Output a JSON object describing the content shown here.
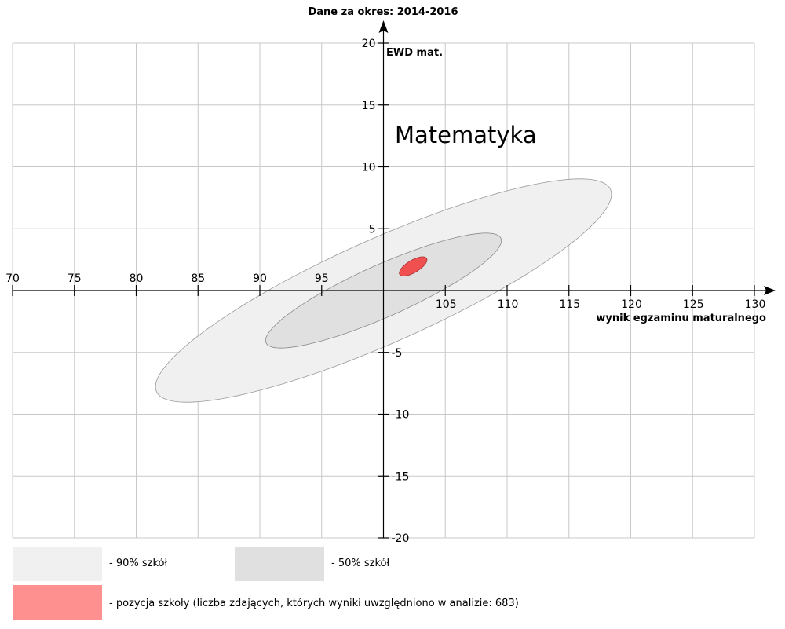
{
  "header": {
    "title": "Dane za okres: 2014-2016"
  },
  "chart_data": {
    "type": "scatter",
    "subtitle": "Matematyka",
    "xlabel": "wynik egzaminu maturalnego",
    "ylabel": "EWD mat.",
    "xlim": [
      70,
      130
    ],
    "ylim": [
      -20,
      20
    ],
    "x_ticks": [
      70,
      75,
      80,
      85,
      90,
      95,
      105,
      110,
      115,
      120,
      125,
      130
    ],
    "y_ticks": [
      20,
      15,
      10,
      5,
      -5,
      -10,
      -15,
      -20
    ],
    "grid": true,
    "regions": [
      {
        "name": "90% szkół",
        "shape": "ellipse",
        "color": "#f0f0f0",
        "stroke": "#999999",
        "center": [
          100,
          0
        ],
        "axes": [
          20.1,
          4.2
        ],
        "angle_deg": 24
      },
      {
        "name": "50% szkół",
        "shape": "ellipse",
        "color": "#e0e0e0",
        "stroke": "#8a8a8a",
        "center": [
          100,
          0
        ],
        "axes": [
          10.4,
          2.1
        ],
        "angle_deg": 24
      },
      {
        "name": "pozycja szkoły",
        "shape": "ellipse",
        "color": "#f05050",
        "stroke": "#a03030",
        "center": [
          102.4,
          1.95
        ],
        "axes": [
          1.27,
          0.5
        ],
        "angle_deg": 31
      }
    ]
  },
  "legend": {
    "items": [
      {
        "label": "- 90% szkół",
        "color": "#f0f0f0"
      },
      {
        "label": "- 50% szkół",
        "color": "#e0e0e0"
      },
      {
        "label": "- pozycja szkoły (liczba zdających, których wyniki uwzględniono w analizie: 683)",
        "color": "#ff9090"
      }
    ]
  }
}
